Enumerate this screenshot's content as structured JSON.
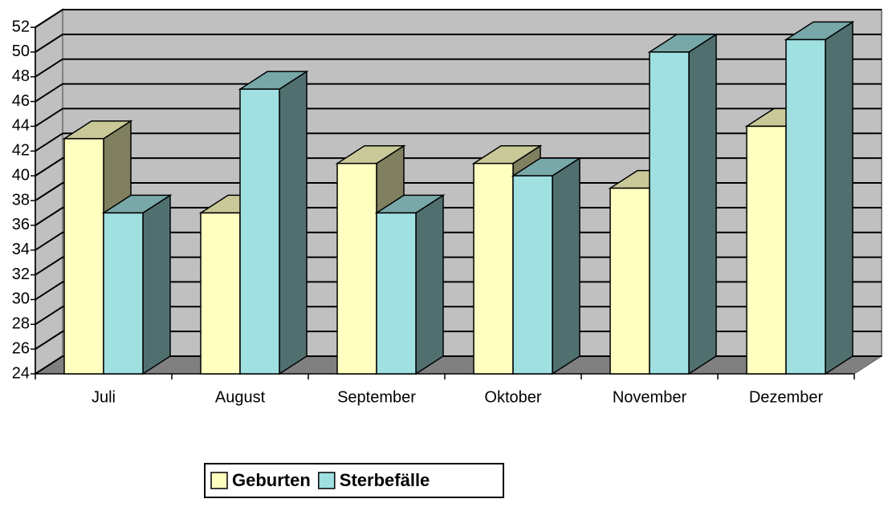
{
  "chart_data": {
    "type": "bar3d",
    "categories": [
      "Juli",
      "August",
      "September",
      "Oktober",
      "November",
      "Dezember"
    ],
    "series": [
      {
        "name": "Geburten",
        "color": "#ffffc0",
        "values": [
          43,
          37,
          41,
          41,
          39,
          44
        ]
      },
      {
        "name": "Sterbefälle",
        "color": "#a0e0e0",
        "values": [
          37,
          47,
          37,
          40,
          50,
          51
        ]
      }
    ],
    "ylim": [
      24,
      52
    ],
    "yticks": [
      24,
      26,
      28,
      30,
      32,
      34,
      36,
      38,
      40,
      42,
      44,
      46,
      48,
      50,
      52
    ],
    "grid": true,
    "legend": "bottom"
  }
}
